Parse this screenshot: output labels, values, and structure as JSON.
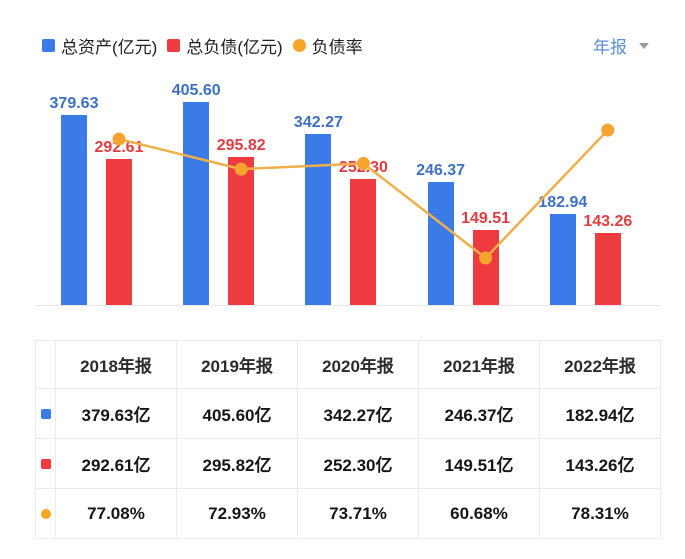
{
  "legend": {
    "items": [
      {
        "key": "assets",
        "label": "总资产(亿元)",
        "color": "#3B7BE8",
        "shape": "square"
      },
      {
        "key": "liabilities",
        "label": "总负债(亿元)",
        "color": "#EE3B40",
        "shape": "square"
      },
      {
        "key": "debt_ratio",
        "label": "负债率",
        "color": "#F7A42B",
        "shape": "circle"
      }
    ]
  },
  "period_selector": {
    "label": "年报"
  },
  "chart_data": {
    "type": "bar+line",
    "categories": [
      "2018年报",
      "2019年报",
      "2020年报",
      "2021年报",
      "2022年报"
    ],
    "series": [
      {
        "key": "assets",
        "name": "总资产(亿元)",
        "type": "bar",
        "color": "#3B7BE8",
        "label_color": "#3E70C4",
        "values": [
          379.63,
          405.6,
          342.27,
          246.37,
          182.94
        ],
        "value_labels": [
          "379.63",
          "405.60",
          "342.27",
          "246.37",
          "182.94"
        ]
      },
      {
        "key": "liabilities",
        "name": "总负债(亿元)",
        "type": "bar",
        "color": "#EE3B40",
        "label_color": "#E23C41",
        "values": [
          292.61,
          295.82,
          252.3,
          149.51,
          143.26
        ],
        "value_labels": [
          "292.61",
          "295.82",
          "252.30",
          "149.51",
          "143.26"
        ]
      },
      {
        "key": "debt_ratio",
        "name": "负债率",
        "type": "line",
        "color": "#EFAF4B",
        "marker_color": "#F6A42E",
        "unit": "%",
        "values": [
          77.08,
          72.93,
          73.71,
          60.68,
          78.31
        ],
        "value_labels": [
          "77.08%",
          "72.93%",
          "73.71%",
          "60.68%",
          "78.31%"
        ]
      }
    ],
    "left_axis": {
      "min": 0,
      "max": 486,
      "labels_visible": false
    },
    "right_axis": {
      "min": 54.2,
      "max": 87.7,
      "labels_visible": false
    },
    "grid": false,
    "legend_position": "top",
    "bar_data_labels": true,
    "line_data_labels": false
  },
  "table": {
    "columns": [
      "2018年报",
      "2019年报",
      "2020年报",
      "2021年报",
      "2022年报"
    ],
    "rows": [
      {
        "key": "assets",
        "icon": "blue-square",
        "icon_color": "#3B7BE8",
        "values": [
          "379.63亿",
          "405.60亿",
          "342.27亿",
          "246.37亿",
          "182.94亿"
        ]
      },
      {
        "key": "liabilities",
        "icon": "red-square",
        "icon_color": "#EE3B40",
        "values": [
          "292.61亿",
          "295.82亿",
          "252.30亿",
          "149.51亿",
          "143.26亿"
        ]
      },
      {
        "key": "debt_ratio",
        "icon": "orange-circle",
        "icon_color": "#F5A623",
        "values": [
          "77.08%",
          "72.93%",
          "73.71%",
          "60.68%",
          "78.31%"
        ]
      }
    ]
  }
}
